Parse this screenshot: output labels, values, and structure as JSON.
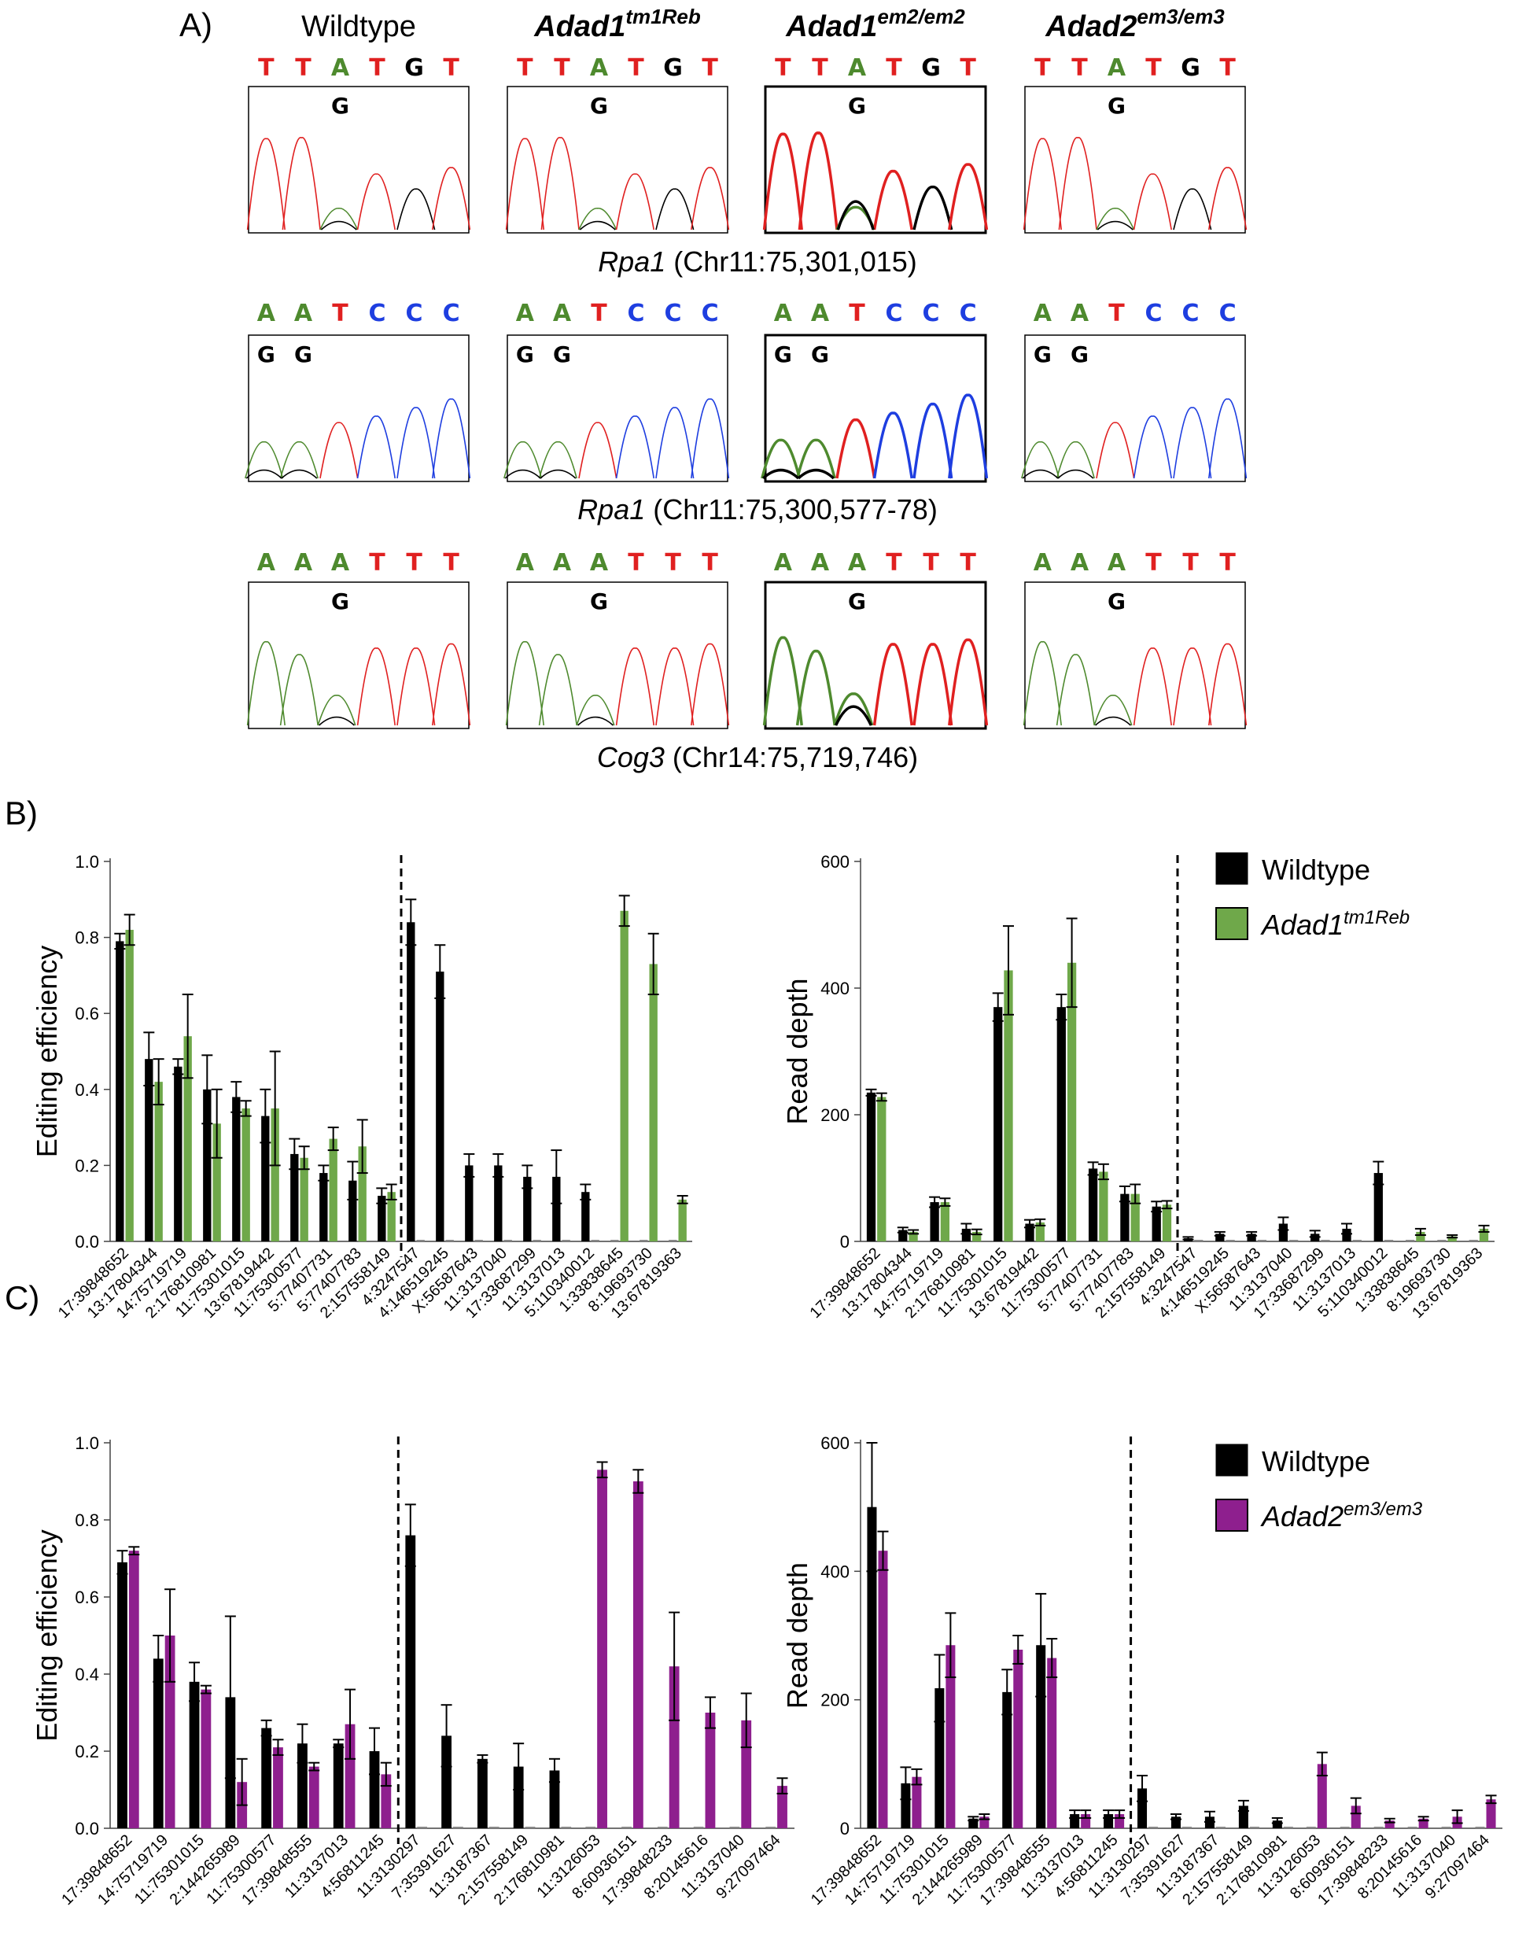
{
  "panels": {
    "a": "A)",
    "b": "B)",
    "c": "C)"
  },
  "colors": {
    "A": "#4e8a2e",
    "T": "#e02020",
    "C": "#1e3ee0",
    "G": "#000000",
    "wildtype": "#000000",
    "adad1": "#6fa84a",
    "adad2": "#8e1f8e"
  },
  "chromatograms": {
    "columns": [
      {
        "name": "Wildtype",
        "sup": ""
      },
      {
        "name": "Adad1",
        "sup": "tm1Reb"
      },
      {
        "name": "Adad1",
        "sup": "em2/em2"
      },
      {
        "name": "Adad2",
        "sup": "em3/em3"
      }
    ],
    "rows": [
      {
        "gene": "Rpa1",
        "coord": "(Chr11:75,301,015)",
        "bases": [
          "T",
          "T",
          "A",
          "T",
          "G",
          "T"
        ],
        "g_marks": [
          "G"
        ]
      },
      {
        "gene": "Rpa1",
        "coord": "(Chr11:75,300,577-78)",
        "bases": [
          "A",
          "A",
          "T",
          "C",
          "C",
          "C"
        ],
        "g_marks": [
          "G",
          "G"
        ]
      },
      {
        "gene": "Cog3",
        "coord": "(Chr14:75,719,746)",
        "bases": [
          "A",
          "A",
          "A",
          "T",
          "T",
          "T"
        ],
        "g_marks": [
          "G"
        ]
      }
    ]
  },
  "legend_b": {
    "wildtype": "Wildtype",
    "mutant": "Adad1",
    "mutant_sup": "tm1Reb"
  },
  "legend_c": {
    "wildtype": "Wildtype",
    "mutant": "Adad2",
    "mutant_sup": "em3/em3"
  },
  "chart_data": [
    {
      "id": "B-efficiency",
      "type": "bar",
      "ylabel": "Editing efficiency",
      "ylim": [
        0,
        1.0
      ],
      "yticks": [
        "0.0",
        "0.2",
        "0.4",
        "0.6",
        "0.8",
        "1.0"
      ],
      "categories": [
        "17:39848652",
        "13:17804344",
        "14:75719719",
        "2:176810981",
        "11:75301015",
        "13:67819442",
        "11:75300577",
        "5:77407731",
        "5:77407783",
        "2:157558149",
        "4:3247547",
        "4:146519245",
        "X:56587643",
        "11:3137040",
        "17:33687299",
        "11:3137013",
        "5:110340012",
        "1:33838645",
        "8:19693730",
        "13:67819363"
      ],
      "divider_after": 9,
      "series": [
        {
          "name": "Wildtype",
          "values": [
            0.79,
            0.48,
            0.46,
            0.4,
            0.38,
            0.33,
            0.23,
            0.18,
            0.16,
            0.12,
            0.84,
            0.71,
            0.2,
            0.2,
            0.17,
            0.17,
            0.13,
            0,
            0,
            0
          ],
          "errors": [
            0.02,
            0.07,
            0.02,
            0.09,
            0.04,
            0.07,
            0.04,
            0.02,
            0.05,
            0.02,
            0.06,
            0.07,
            0.03,
            0.03,
            0.03,
            0.07,
            0.02,
            0,
            0,
            0
          ]
        },
        {
          "name": "Adad1tm1Reb",
          "values": [
            0.82,
            0.42,
            0.54,
            0.31,
            0.35,
            0.35,
            0.22,
            0.27,
            0.25,
            0.13,
            0,
            0,
            0,
            0,
            0,
            0,
            0,
            0.87,
            0.73,
            0.11
          ],
          "errors": [
            0.04,
            0.06,
            0.11,
            0.09,
            0.02,
            0.15,
            0.03,
            0.03,
            0.07,
            0.02,
            0,
            0,
            0,
            0,
            0,
            0,
            0,
            0.04,
            0.08,
            0.01
          ]
        }
      ]
    },
    {
      "id": "B-depth",
      "type": "bar",
      "ylabel": "Read depth",
      "ylim": [
        0,
        600
      ],
      "yticks": [
        "0",
        "200",
        "400",
        "600"
      ],
      "categories": [
        "17:39848652",
        "13:17804344",
        "14:75719719",
        "2:176810981",
        "11:75301015",
        "13:67819442",
        "11:75300577",
        "5:77407731",
        "5:77407783",
        "2:157558149",
        "4:3247547",
        "4:146519245",
        "X:56587643",
        "11:3137040",
        "17:33687299",
        "11:3137013",
        "5:110340012",
        "1:33838645",
        "8:19693730",
        "13:67819363"
      ],
      "divider_after": 9,
      "series": [
        {
          "name": "Wildtype",
          "values": [
            235,
            18,
            62,
            20,
            370,
            28,
            370,
            115,
            75,
            55,
            5,
            12,
            12,
            28,
            12,
            20,
            108,
            0,
            0,
            0
          ],
          "errors": [
            5,
            4,
            8,
            8,
            22,
            6,
            20,
            10,
            12,
            8,
            2,
            3,
            3,
            10,
            5,
            8,
            18,
            0,
            0,
            0
          ]
        },
        {
          "name": "Adad1tm1Reb",
          "values": [
            228,
            15,
            62,
            15,
            428,
            30,
            440,
            110,
            75,
            58,
            0,
            0,
            0,
            0,
            0,
            0,
            0,
            15,
            8,
            20
          ],
          "errors": [
            6,
            3,
            6,
            4,
            70,
            5,
            70,
            12,
            15,
            6,
            0,
            0,
            0,
            0,
            0,
            0,
            0,
            5,
            2,
            5
          ]
        }
      ]
    },
    {
      "id": "C-efficiency",
      "type": "bar",
      "ylabel": "Editing efficiency",
      "ylim": [
        0,
        1.0
      ],
      "yticks": [
        "0.0",
        "0.2",
        "0.4",
        "0.6",
        "0.8",
        "1.0"
      ],
      "categories": [
        "17:39848652",
        "14:75719719",
        "11:75301015",
        "2:144265989",
        "11:75300577",
        "17:39848555",
        "11:3137013",
        "4:56811245",
        "11:3130297",
        "7:35391627",
        "11:3187367",
        "2:157558149",
        "2:176810981",
        "11:3126053",
        "8:60936151",
        "17:39848233",
        "8:20145616",
        "11:3137040",
        "9:27097464"
      ],
      "divider_after": 7,
      "series": [
        {
          "name": "Wildtype",
          "values": [
            0.69,
            0.44,
            0.38,
            0.34,
            0.26,
            0.22,
            0.22,
            0.2,
            0.76,
            0.24,
            0.18,
            0.16,
            0.15,
            0,
            0,
            0,
            0,
            0,
            0
          ],
          "errors": [
            0.03,
            0.06,
            0.05,
            0.21,
            0.02,
            0.05,
            0.01,
            0.06,
            0.08,
            0.08,
            0.01,
            0.06,
            0.03,
            0,
            0,
            0,
            0,
            0,
            0
          ]
        },
        {
          "name": "Adad2em3/em3",
          "values": [
            0.72,
            0.5,
            0.36,
            0.12,
            0.21,
            0.16,
            0.27,
            0.14,
            0,
            0,
            0,
            0,
            0,
            0.93,
            0.9,
            0.42,
            0.3,
            0.28,
            0.11
          ],
          "errors": [
            0.01,
            0.12,
            0.01,
            0.06,
            0.02,
            0.01,
            0.09,
            0.03,
            0,
            0,
            0,
            0,
            0,
            0.02,
            0.03,
            0.14,
            0.04,
            0.07,
            0.02
          ]
        }
      ]
    },
    {
      "id": "C-depth",
      "type": "bar",
      "ylabel": "Read depth",
      "ylim": [
        0,
        600
      ],
      "yticks": [
        "0",
        "200",
        "400",
        "600"
      ],
      "categories": [
        "17:39848652",
        "14:75719719",
        "11:75301015",
        "2:144265989",
        "11:75300577",
        "17:39848555",
        "11:3137013",
        "4:56811245",
        "11:3130297",
        "7:35391627",
        "11:3187367",
        "2:157558149",
        "2:176810981",
        "11:3126053",
        "8:60936151",
        "17:39848233",
        "8:20145616",
        "11:3137040",
        "9:27097464"
      ],
      "divider_after": 7,
      "series": [
        {
          "name": "Wildtype",
          "values": [
            500,
            70,
            218,
            15,
            212,
            285,
            22,
            22,
            62,
            18,
            18,
            35,
            12,
            0,
            0,
            0,
            0,
            0,
            0
          ],
          "errors": [
            100,
            25,
            52,
            3,
            35,
            80,
            6,
            6,
            20,
            4,
            8,
            8,
            4,
            0,
            0,
            0,
            0,
            0,
            0
          ]
        },
        {
          "name": "Adad2em3/em3",
          "values": [
            432,
            80,
            285,
            18,
            278,
            265,
            22,
            22,
            0,
            0,
            0,
            0,
            0,
            100,
            35,
            12,
            15,
            18,
            45
          ],
          "errors": [
            30,
            12,
            50,
            4,
            22,
            30,
            6,
            6,
            0,
            0,
            0,
            0,
            0,
            18,
            12,
            3,
            3,
            10,
            6
          ]
        }
      ]
    }
  ]
}
